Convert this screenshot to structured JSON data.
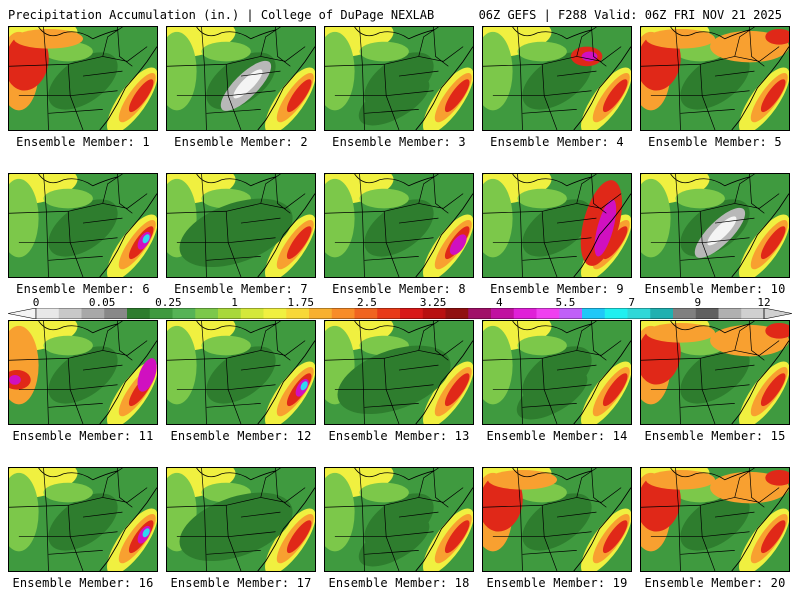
{
  "header": {
    "left": "Precipitation Accumulation (in.) | College of DuPage NEXLAB",
    "right": "06Z GEFS | F288 Valid: 06Z FRI NOV 21 2025"
  },
  "label_prefix": "Ensemble Member:",
  "panels": [
    {
      "label": "Ensemble Member: 1",
      "regime": "red-west"
    },
    {
      "label": "Ensemble Member: 2",
      "regime": "gray-center"
    },
    {
      "label": "Ensemble Member: 3",
      "regime": "green-southeast"
    },
    {
      "label": "Ensemble Member: 4",
      "regime": "magenta-northeast"
    },
    {
      "label": "Ensemble Member: 5",
      "regime": "red-wide"
    },
    {
      "label": "Ensemble Member: 6",
      "regime": "cyan-southeast"
    },
    {
      "label": "Ensemble Member: 7",
      "regime": "green-wide"
    },
    {
      "label": "Ensemble Member: 8",
      "regime": "magenta-southeast"
    },
    {
      "label": "Ensemble Member: 9",
      "regime": "magenta-coast"
    },
    {
      "label": "Ensemble Member: 10",
      "regime": "gray-center"
    },
    {
      "label": "Ensemble Member: 11",
      "regime": "magenta-west"
    },
    {
      "label": "Ensemble Member: 12",
      "regime": "cyan-southeast"
    },
    {
      "label": "Ensemble Member: 13",
      "regime": "green-wide"
    },
    {
      "label": "Ensemble Member: 14",
      "regime": "green-southeast"
    },
    {
      "label": "Ensemble Member: 15",
      "regime": "red-wide"
    },
    {
      "label": "Ensemble Member: 16",
      "regime": "cyan-southeast"
    },
    {
      "label": "Ensemble Member: 17",
      "regime": "green-wide"
    },
    {
      "label": "Ensemble Member: 18",
      "regime": "green-southeast"
    },
    {
      "label": "Ensemble Member: 19",
      "regime": "red-west"
    },
    {
      "label": "Ensemble Member: 20",
      "regime": "red-wide"
    }
  ],
  "colorbar": {
    "tick_labels": [
      "0",
      "0.05",
      "0.25",
      "1",
      "1.75",
      "2.5",
      "3.25",
      "4",
      "5.5",
      "7",
      "9",
      "12"
    ],
    "colors": [
      "#e8e8e8",
      "#c8c8c8",
      "#a8a8a8",
      "#888888",
      "#2e7d2e",
      "#3f9a3f",
      "#56b356",
      "#7cc84a",
      "#a8d83a",
      "#d4e83a",
      "#f0f040",
      "#f8d838",
      "#f8b030",
      "#f88c28",
      "#f06420",
      "#e83a18",
      "#d81818",
      "#b81010",
      "#901010",
      "#a01068",
      "#c010a0",
      "#e020d8",
      "#f040f0",
      "#c060f8",
      "#20c8f8",
      "#20f0f0",
      "#30d8d8",
      "#20b0b0",
      "#808080",
      "#606060",
      "#b0b0b0",
      "#d0d0d0"
    ],
    "palette": {
      "green_dark": "#2e7d2e",
      "green": "#3f9a3f",
      "green_light": "#7cc84a",
      "yellow": "#f0f040",
      "orange": "#f8a030",
      "red": "#e02818",
      "dark_red": "#901010",
      "magenta": "#d010c0",
      "cyan": "#30d8f0",
      "gray": "#b8b8b8",
      "white": "#f4f4f4"
    }
  }
}
